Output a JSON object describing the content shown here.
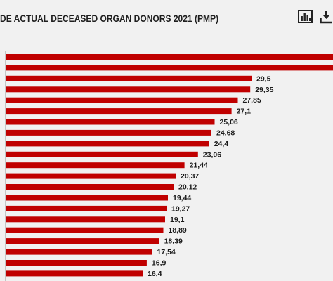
{
  "chart_data": {
    "type": "bar",
    "orientation": "horizontal",
    "title": "DE ACTUAL DECEASED ORGAN DONORS 2021 (PMP)",
    "values": [
      46.03,
      40.2,
      29.5,
      29.35,
      27.85,
      27.1,
      25.06,
      24.68,
      24.4,
      23.06,
      21.44,
      20.37,
      20.12,
      19.44,
      19.27,
      19.1,
      18.89,
      18.39,
      17.54,
      16.9,
      16.4
    ],
    "value_labels": [
      "",
      "",
      "29,5",
      "29,35",
      "27,85",
      "27,1",
      "25,06",
      "24,68",
      "24,4",
      "23,06",
      "21,44",
      "20,37",
      "20,12",
      "19,44",
      "19,27",
      "19,1",
      "18,89",
      "18,39",
      "17,54",
      "16,9",
      "16,4"
    ],
    "bar_color": "#c00000",
    "axis_color": "#999999",
    "grid": false,
    "legend": "none"
  },
  "toolbar": {
    "icons": [
      "bar-chart-icon",
      "download-icon"
    ],
    "icon_color": "#222222"
  }
}
